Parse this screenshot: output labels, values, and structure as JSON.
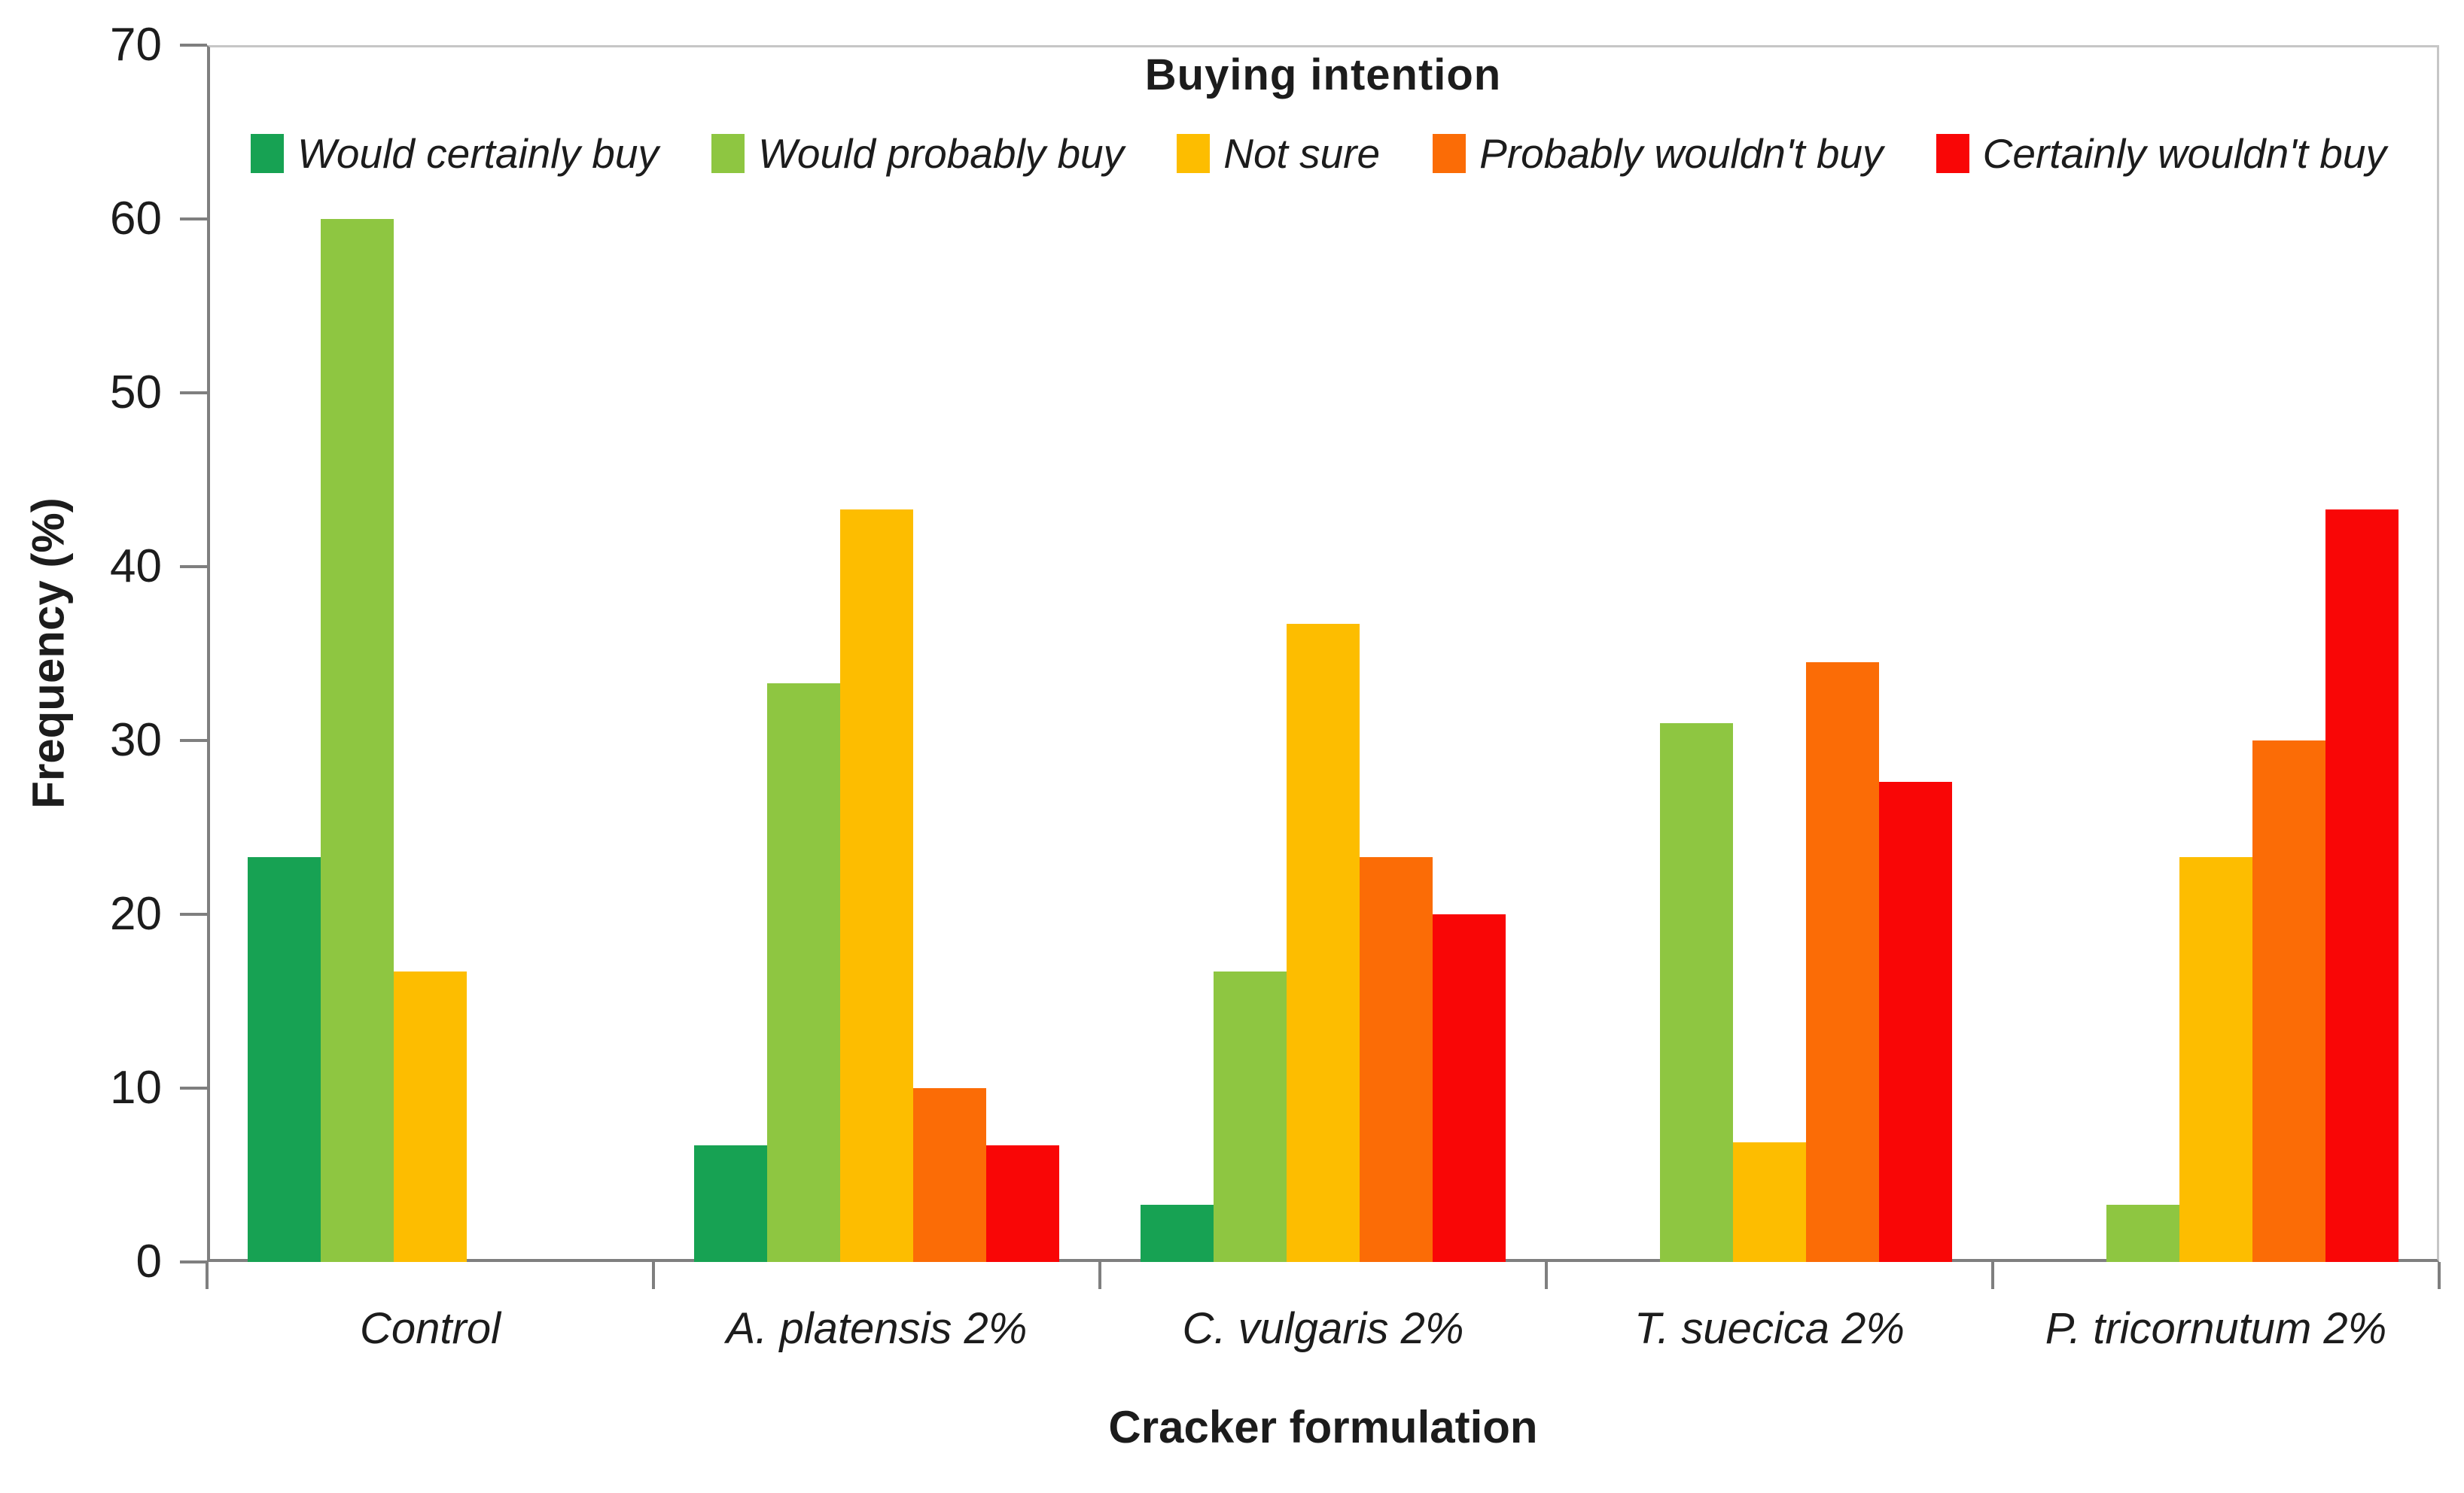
{
  "chart_data": {
    "type": "bar",
    "title": "Buying intention",
    "xlabel": "Cracker formulation",
    "ylabel": "Frequency (%)",
    "ylim": [
      0,
      70
    ],
    "yticks": [
      0,
      10,
      20,
      30,
      40,
      50,
      60,
      70
    ],
    "grid": false,
    "legend_position": "top",
    "categories": [
      "Control",
      "A. platensis 2%",
      "C. vulgaris 2%",
      "T. suecica 2%",
      "P. tricornutum 2%"
    ],
    "series": [
      {
        "name": "Would certainly buy",
        "color": "#17A253",
        "values": [
          23.3,
          6.7,
          3.3,
          0,
          0
        ]
      },
      {
        "name": "Would probably buy",
        "color": "#8EC641",
        "values": [
          60.0,
          33.3,
          16.7,
          31.0,
          3.3
        ]
      },
      {
        "name": "Not sure",
        "color": "#FDBD00",
        "values": [
          16.7,
          43.3,
          36.7,
          6.9,
          23.3
        ]
      },
      {
        "name": "Probably wouldn't buy",
        "color": "#FB6C06",
        "values": [
          0,
          10.0,
          23.3,
          34.5,
          30.0
        ]
      },
      {
        "name": "Certainly wouldn't buy",
        "color": "#F90606",
        "values": [
          0,
          6.7,
          20.0,
          27.6,
          43.3
        ]
      }
    ]
  }
}
